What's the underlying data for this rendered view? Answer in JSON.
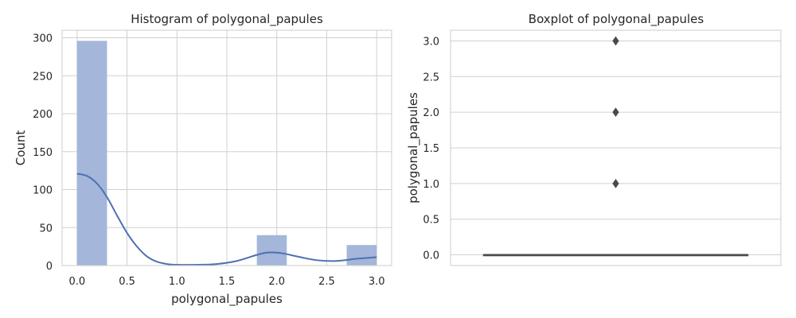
{
  "chart_data": [
    {
      "type": "bar",
      "title": "Histogram of polygonal_papules",
      "xlabel": "polygonal_papules",
      "ylabel": "Count",
      "xlim": [
        -0.15,
        3.15
      ],
      "ylim": [
        0,
        310
      ],
      "grid": true,
      "bars": [
        {
          "x0": 0.0,
          "x1": 0.3,
          "value": 296
        },
        {
          "x0": 1.8,
          "x1": 2.1,
          "value": 40
        },
        {
          "x0": 2.7,
          "x1": 3.0,
          "value": 27
        }
      ],
      "kde": {
        "x": [
          0.0,
          0.1,
          0.2,
          0.3,
          0.4,
          0.5,
          0.6,
          0.7,
          0.8,
          0.9,
          1.0,
          1.2,
          1.4,
          1.6,
          1.8,
          1.9,
          2.0,
          2.1,
          2.2,
          2.4,
          2.6,
          2.8,
          2.9,
          3.0
        ],
        "y": [
          121,
          118,
          108,
          90,
          66,
          43,
          25,
          12,
          5,
          2,
          1,
          1,
          2,
          6,
          14,
          17,
          17,
          15,
          12,
          7,
          6,
          9,
          10,
          11
        ]
      },
      "x_ticks": [
        {
          "v": 0.0,
          "label": "0.0"
        },
        {
          "v": 0.5,
          "label": "0.5"
        },
        {
          "v": 1.0,
          "label": "1.0"
        },
        {
          "v": 1.5,
          "label": "1.5"
        },
        {
          "v": 2.0,
          "label": "2.0"
        },
        {
          "v": 2.5,
          "label": "2.5"
        },
        {
          "v": 3.0,
          "label": "3.0"
        }
      ],
      "y_ticks": [
        {
          "v": 0,
          "label": "0"
        },
        {
          "v": 50,
          "label": "50"
        },
        {
          "v": 100,
          "label": "100"
        },
        {
          "v": 150,
          "label": "150"
        },
        {
          "v": 200,
          "label": "200"
        },
        {
          "v": 250,
          "label": "250"
        },
        {
          "v": 300,
          "label": "300"
        }
      ],
      "colors": {
        "bar": "#a4b6d9",
        "line": "#4c72b0",
        "grid": "#d0d0d0",
        "axis": "#cccccc"
      }
    },
    {
      "type": "boxplot",
      "title": "Boxplot of polygonal_papules",
      "xlabel": "",
      "ylabel": "polygonal_papules",
      "ylim": [
        -0.15,
        3.15
      ],
      "grid": true,
      "box": {
        "min": 0.0,
        "q1": 0.0,
        "median": 0.0,
        "q3": 0.0,
        "max": 0.0
      },
      "outliers": [
        1.0,
        2.0,
        3.0
      ],
      "y_ticks": [
        {
          "v": 0.0,
          "label": "0.0"
        },
        {
          "v": 0.5,
          "label": "0.5"
        },
        {
          "v": 1.0,
          "label": "1.0"
        },
        {
          "v": 1.5,
          "label": "1.5"
        },
        {
          "v": 2.0,
          "label": "2.0"
        },
        {
          "v": 2.5,
          "label": "2.5"
        },
        {
          "v": 3.0,
          "label": "3.0"
        }
      ],
      "colors": {
        "box_line": "#4a4a4a",
        "outlier": "#4a4a4a",
        "grid": "#d0d0d0",
        "axis": "#cccccc"
      }
    }
  ]
}
